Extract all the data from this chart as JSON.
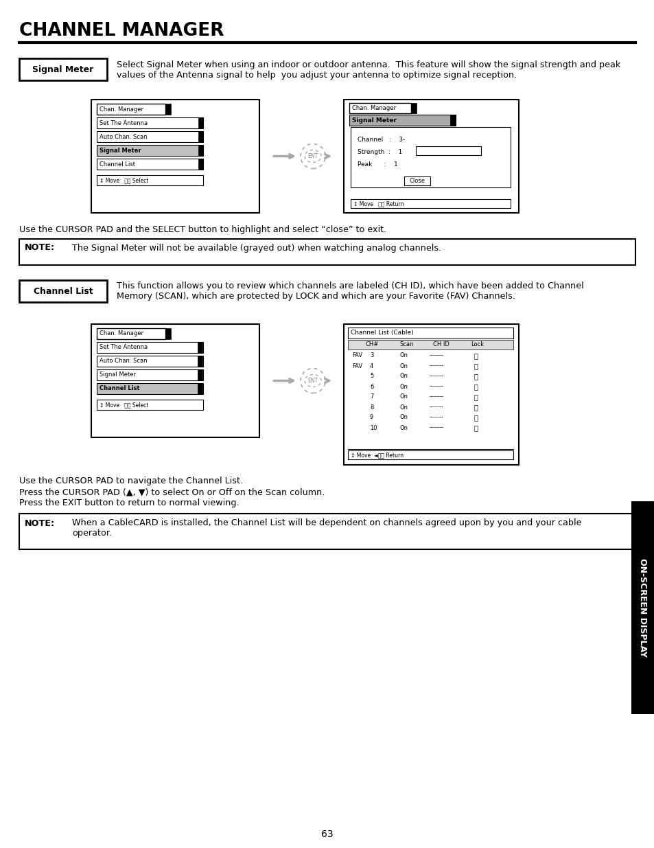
{
  "title": "CHANNEL MANAGER",
  "page_number": "63",
  "bg_color": "#ffffff",
  "text_color": "#000000",
  "section1_label": "Signal Meter",
  "section1_text": "Select Signal Meter when using an indoor or outdoor antenna.  This feature will show the signal strength and peak\nvalues of the Antenna signal to help  you adjust your antenna to optimize signal reception.",
  "section1_note_label": "NOTE:",
  "section1_note_text": "The Signal Meter will not be available (grayed out) when watching analog channels.",
  "section1_cursor_text": "Use the CURSOR PAD and the SELECT button to highlight and select “close” to exit.",
  "section2_label": "Channel List",
  "section2_text": "This function allows you to review which channels are labeled (CH ID), which have been added to Channel\nMemory (SCAN), which are protected by LOCK and which are your Favorite (FAV) Channels.",
  "section2_cursor_text1": "Use the CURSOR PAD to navigate the Channel List.",
  "section2_cursor_text2": "Press the CURSOR PAD (▲, ▼) to select On or Off on the Scan column.",
  "section2_cursor_text3": "Press the EXIT button to return to normal viewing.",
  "section2_note_label": "NOTE:",
  "section2_note_text": "When a CableCARD is installed, the Channel List will be dependent on channels agreed upon by you and your cable\noperator.",
  "sidebar_text": "ON-SCREEN DISPLAY",
  "sidebar_bg": "#000000",
  "sidebar_text_color": "#ffffff"
}
